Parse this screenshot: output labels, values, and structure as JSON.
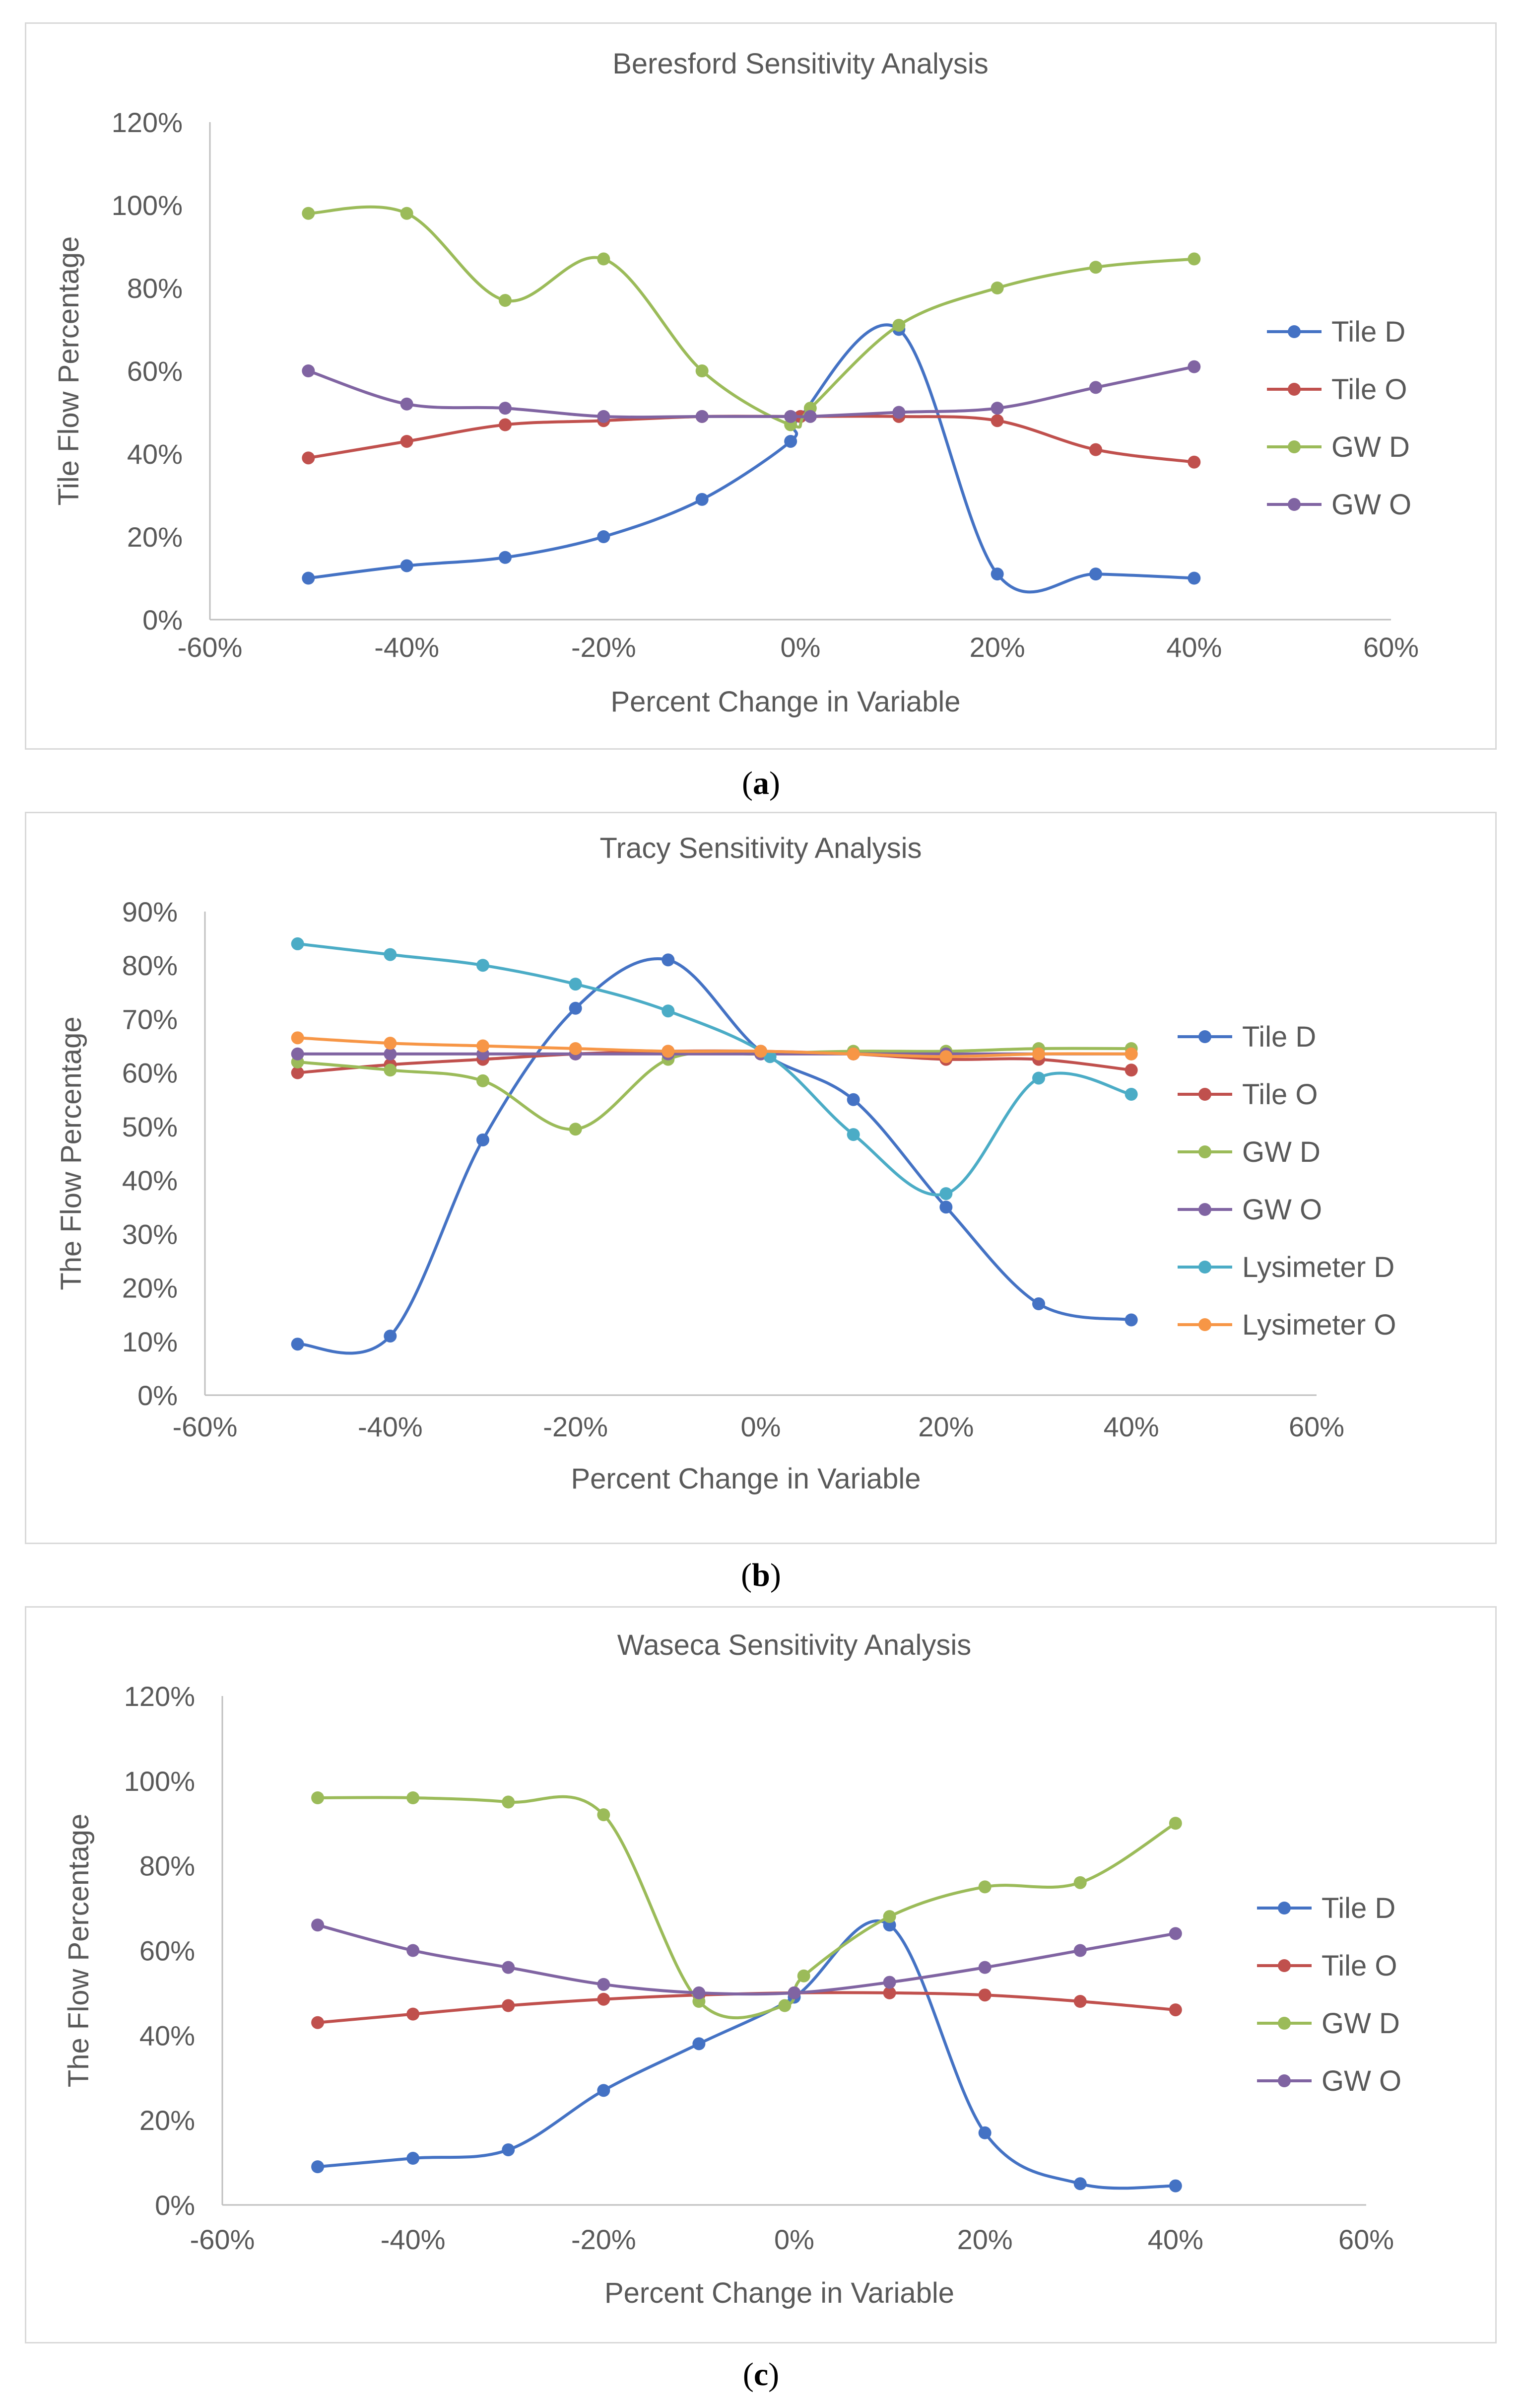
{
  "captions": {
    "a": "a",
    "b": "b",
    "c": "c"
  },
  "chart_data": [
    {
      "type": "line",
      "title": "Beresford Sensitivity Analysis",
      "xlabel": "Percent Change in Variable",
      "ylabel": "Tile Flow Percentage",
      "xlim": [
        -60,
        60
      ],
      "ylim": [
        0,
        120
      ],
      "xticks": [
        "-60%",
        "-40%",
        "-20%",
        "0%",
        "20%",
        "40%",
        "60%"
      ],
      "yticks": [
        "0%",
        "20%",
        "40%",
        "60%",
        "80%",
        "100%",
        "120%"
      ],
      "series": [
        {
          "name": "Tile D",
          "color": "#4472C4",
          "x": [
            -50,
            -40,
            -30,
            -20,
            -10,
            -1,
            0,
            10,
            20,
            30,
            40
          ],
          "y": [
            10,
            13,
            15,
            20,
            29,
            43,
            49,
            70,
            11,
            11,
            10
          ]
        },
        {
          "name": "Tile O",
          "color": "#C0504D",
          "x": [
            -50,
            -40,
            -30,
            -20,
            -10,
            -1,
            0,
            10,
            20,
            30,
            40
          ],
          "y": [
            39,
            43,
            47,
            48,
            49,
            49,
            49,
            49,
            48,
            41,
            38
          ]
        },
        {
          "name": "GW D",
          "color": "#9BBB59",
          "x": [
            -50,
            -40,
            -30,
            -20,
            -10,
            -1,
            1,
            10,
            20,
            30,
            40
          ],
          "y": [
            98,
            98,
            77,
            87,
            60,
            47,
            51,
            71,
            80,
            85,
            87
          ]
        },
        {
          "name": "GW O",
          "color": "#8064A2",
          "x": [
            -50,
            -40,
            -30,
            -20,
            -10,
            -1,
            1,
            10,
            20,
            30,
            40
          ],
          "y": [
            60,
            52,
            51,
            49,
            49,
            49,
            49,
            50,
            51,
            56,
            61
          ]
        }
      ]
    },
    {
      "type": "line",
      "title": "Tracy Sensitivity Analysis",
      "xlabel": "Percent Change in Variable",
      "ylabel": "The Flow Percentage",
      "xlim": [
        -60,
        60
      ],
      "ylim": [
        0,
        90
      ],
      "xticks": [
        "-60%",
        "-40%",
        "-20%",
        "0%",
        "20%",
        "40%",
        "60%"
      ],
      "yticks": [
        "0%",
        "10%",
        "20%",
        "30%",
        "40%",
        "50%",
        "60%",
        "70%",
        "80%",
        "90%"
      ],
      "series": [
        {
          "name": "Tile D",
          "color": "#4472C4",
          "x": [
            -50,
            -40,
            -30,
            -20,
            -10,
            0,
            10,
            20,
            30,
            40
          ],
          "y": [
            9.5,
            11,
            47.5,
            72,
            81,
            64,
            55,
            35,
            17,
            14
          ]
        },
        {
          "name": "Tile O",
          "color": "#C0504D",
          "x": [
            -50,
            -40,
            -30,
            -20,
            -10,
            0,
            10,
            20,
            30,
            40
          ],
          "y": [
            60,
            61.5,
            62.5,
            63.5,
            64,
            64,
            63.5,
            62.5,
            62.5,
            60.5
          ]
        },
        {
          "name": "GW D",
          "color": "#9BBB59",
          "x": [
            -50,
            -40,
            -30,
            -20,
            -10,
            0,
            10,
            20,
            30,
            40
          ],
          "y": [
            62,
            60.5,
            58.5,
            49.5,
            62.5,
            63.5,
            64,
            64,
            64.5,
            64.5
          ]
        },
        {
          "name": "GW O",
          "color": "#8064A2",
          "x": [
            -50,
            -40,
            -30,
            -20,
            -10,
            0,
            10,
            20,
            30,
            40
          ],
          "y": [
            63.5,
            63.5,
            63.5,
            63.5,
            63.5,
            63.5,
            63.5,
            63.5,
            63.5,
            63.5
          ]
        },
        {
          "name": "Lysimeter D",
          "color": "#4BACC6",
          "x": [
            -50,
            -40,
            -30,
            -20,
            -10,
            1,
            10,
            20,
            30,
            40
          ],
          "y": [
            84,
            82,
            80,
            76.5,
            71.5,
            63,
            48.5,
            37.5,
            59,
            56
          ]
        },
        {
          "name": "Lysimeter O",
          "color": "#F79646",
          "x": [
            -50,
            -40,
            -30,
            -20,
            -10,
            0,
            10,
            20,
            30,
            40
          ],
          "y": [
            66.5,
            65.5,
            65,
            64.5,
            64,
            64,
            63.5,
            63,
            63.5,
            63.5
          ]
        }
      ]
    },
    {
      "type": "line",
      "title": "Waseca Sensitivity Analysis",
      "xlabel": "Percent Change in Variable",
      "ylabel": "The Flow Percentage",
      "xlim": [
        -60,
        60
      ],
      "ylim": [
        0,
        120
      ],
      "xticks": [
        "-60%",
        "-40%",
        "-20%",
        "0%",
        "20%",
        "40%",
        "60%"
      ],
      "yticks": [
        "0%",
        "20%",
        "40%",
        "60%",
        "80%",
        "100%",
        "120%"
      ],
      "series": [
        {
          "name": "Tile D",
          "color": "#4472C4",
          "x": [
            -50,
            -40,
            -30,
            -20,
            -10,
            0,
            10,
            20,
            30,
            40
          ],
          "y": [
            9,
            11,
            13,
            27,
            38,
            49,
            66,
            17,
            5,
            4.5
          ]
        },
        {
          "name": "Tile O",
          "color": "#C0504D",
          "x": [
            -50,
            -40,
            -30,
            -20,
            -10,
            0,
            10,
            20,
            30,
            40
          ],
          "y": [
            43,
            45,
            47,
            48.5,
            49.5,
            50,
            50,
            49.5,
            48,
            46
          ]
        },
        {
          "name": "GW D",
          "color": "#9BBB59",
          "x": [
            -50,
            -40,
            -30,
            -20,
            -10,
            -1,
            1,
            10,
            20,
            30,
            40
          ],
          "y": [
            96,
            96,
            95,
            92,
            48,
            47,
            54,
            68,
            75,
            76,
            90
          ]
        },
        {
          "name": "GW O",
          "color": "#8064A2",
          "x": [
            -50,
            -40,
            -30,
            -20,
            -10,
            0,
            10,
            20,
            30,
            40
          ],
          "y": [
            66,
            60,
            56,
            52,
            50,
            50,
            52.5,
            56,
            60,
            64
          ]
        }
      ]
    }
  ]
}
